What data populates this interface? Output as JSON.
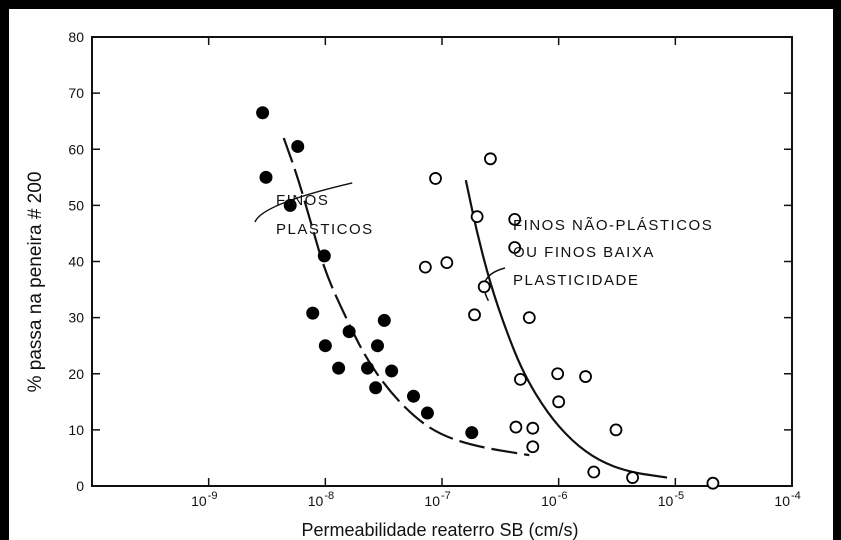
{
  "chart_data": {
    "type": "scatter",
    "title": "",
    "xlabel": "Permeabilidade reaterro SB (cm/s)",
    "ylabel": "% passa na peneira # 200",
    "x_scale": "log",
    "xlim": [
      1e-10,
      0.0001
    ],
    "ylim": [
      0,
      80
    ],
    "grid": false,
    "x_ticks": [
      {
        "base": "10",
        "exp": "-9",
        "value": 1e-09
      },
      {
        "base": "10",
        "exp": "-8",
        "value": 1e-08
      },
      {
        "base": "10",
        "exp": "-7",
        "value": 1e-07
      },
      {
        "base": "10",
        "exp": "-6",
        "value": 1e-06
      },
      {
        "base": "10",
        "exp": "-5",
        "value": 1e-05
      },
      {
        "base": "10",
        "exp": "-4",
        "value": 0.0001
      }
    ],
    "y_ticks": [
      "0",
      "10",
      "20",
      "30",
      "40",
      "50",
      "60",
      "70",
      "80"
    ],
    "series": [
      {
        "name": "FINOS PLASTICOS",
        "marker": "filled-circle",
        "color": "#000000",
        "points": [
          [
            2.9e-09,
            66.5
          ],
          [
            3.1e-09,
            55
          ],
          [
            5e-09,
            50
          ],
          [
            5.8e-09,
            60.5
          ],
          [
            9.8e-09,
            41
          ],
          [
            7.8e-09,
            30.8
          ],
          [
            1e-08,
            25
          ],
          [
            1.6e-08,
            27.5
          ],
          [
            1.3e-08,
            21
          ],
          [
            2.3e-08,
            21
          ],
          [
            2.8e-08,
            25
          ],
          [
            3.2e-08,
            29.5
          ],
          [
            2.7e-08,
            17.5
          ],
          [
            3.7e-08,
            20.5
          ],
          [
            5.7e-08,
            16
          ],
          [
            7.5e-08,
            13
          ],
          [
            1.8e-07,
            9.5
          ]
        ]
      },
      {
        "name": "FINOS NÃO-PLÁSTICOS OU FINOS BAIXA PLASTICIDADE",
        "marker": "open-circle",
        "color": "#000000",
        "points": [
          [
            8.8e-08,
            54.8
          ],
          [
            7.2e-08,
            39
          ],
          [
            1.1e-07,
            39.8
          ],
          [
            2.6e-07,
            58.3
          ],
          [
            2e-07,
            48
          ],
          [
            4.2e-07,
            47.5
          ],
          [
            4.2e-07,
            42.5
          ],
          [
            2.3e-07,
            35.5
          ],
          [
            1.9e-07,
            30.5
          ],
          [
            5.6e-07,
            30
          ],
          [
            4.7e-07,
            19
          ],
          [
            9.8e-07,
            20
          ],
          [
            1.7e-06,
            19.5
          ],
          [
            1e-06,
            15
          ],
          [
            4.3e-07,
            10.5
          ],
          [
            6e-07,
            10.3
          ],
          [
            6e-07,
            7
          ],
          [
            3.1e-06,
            10
          ],
          [
            2e-06,
            2.5
          ],
          [
            4.3e-06,
            1.5
          ],
          [
            2.1e-05,
            0.5
          ]
        ]
      }
    ],
    "curves": [
      {
        "name": "plastic-trend",
        "style": "dashed",
        "points": [
          [
            4.4e-09,
            62
          ],
          [
            5.8e-09,
            55
          ],
          [
            7.5e-09,
            47
          ],
          [
            1e-08,
            38
          ],
          [
            1.5e-08,
            30
          ],
          [
            2.2e-08,
            23
          ],
          [
            3.5e-08,
            17
          ],
          [
            6e-08,
            12
          ],
          [
            1e-07,
            9
          ],
          [
            2e-07,
            7
          ],
          [
            5.6e-07,
            5.5
          ]
        ]
      },
      {
        "name": "nonplastic-trend",
        "style": "solid",
        "points": [
          [
            1.6e-07,
            54.5
          ],
          [
            2e-07,
            45
          ],
          [
            2.6e-07,
            36
          ],
          [
            3.5e-07,
            28
          ],
          [
            5e-07,
            20
          ],
          [
            8e-07,
            13
          ],
          [
            1.3e-06,
            8
          ],
          [
            2.2e-06,
            4.5
          ],
          [
            4e-06,
            2.5
          ],
          [
            8.5e-06,
            1.5
          ]
        ]
      }
    ],
    "annotations": {
      "plastic_line1": "FINOS",
      "plastic_line2": "PLASTICOS",
      "nonplastic_line1": "FINOS NÃO-PLÁSTICOS",
      "nonplastic_line2": "OU FINOS BAIXA",
      "nonplastic_line3": "PLASTICIDADE"
    }
  }
}
